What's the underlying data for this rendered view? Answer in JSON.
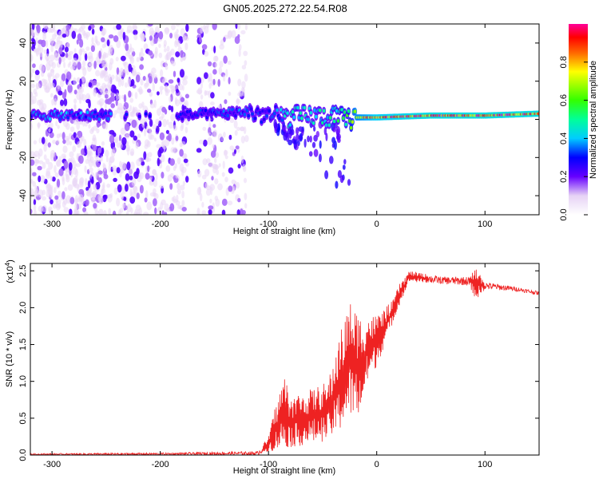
{
  "title": "GN05.2025.272.22.54.R08",
  "colors": {
    "snr_line": "#ee2222",
    "axes": "#000000"
  },
  "chart_data": [
    {
      "type": "heatmap",
      "name": "spectrogram",
      "xlabel": "Height of straight line (km)",
      "ylabel": "Frequency (Hz)",
      "xlim": [
        -320,
        150
      ],
      "ylim": [
        -50,
        50
      ],
      "x_ticks": [
        -300,
        -200,
        -100,
        0,
        100
      ],
      "x_tick_labels": [
        "-300",
        "-200",
        "-100",
        "0",
        "100"
      ],
      "y_ticks": [
        -40,
        -20,
        0,
        20,
        40
      ],
      "y_tick_labels": [
        "-40",
        "-20",
        "0",
        "20",
        "40"
      ],
      "colorbar": {
        "label": "Normalized spectral amplitude",
        "range": [
          0,
          1
        ],
        "ticks": [
          0,
          0.2,
          0.4,
          0.6,
          0.8
        ],
        "tick_labels": [
          "0.0",
          "0.2",
          "0.4",
          "0.6",
          "0.8"
        ]
      },
      "ridge": [
        {
          "x": -320,
          "f": 2,
          "amp": 0.4
        },
        {
          "x": -250,
          "f": 2,
          "amp": 0.35
        },
        {
          "x": -180,
          "f": 2,
          "amp": 0.3
        },
        {
          "x": -120,
          "f": 4,
          "amp": 0.35
        },
        {
          "x": -100,
          "f": 2,
          "amp": 0.3
        },
        {
          "x": -80,
          "f": 1,
          "amp": 0.5
        },
        {
          "x": -60,
          "f": 2,
          "amp": 0.45
        },
        {
          "x": -40,
          "f": 1,
          "amp": 0.5
        },
        {
          "x": -25,
          "f": 0,
          "amp": 0.6
        },
        {
          "x": -20,
          "f": 1,
          "amp": 0.8
        },
        {
          "x": 0,
          "f": 1,
          "amp": 0.9
        },
        {
          "x": 50,
          "f": 2,
          "amp": 0.95
        },
        {
          "x": 100,
          "f": 2,
          "amp": 0.95
        },
        {
          "x": 150,
          "f": 3,
          "amp": 0.95
        }
      ],
      "noise_regions": [
        {
          "x_from": -320,
          "x_to": -250,
          "density": 1.0
        },
        {
          "x_from": -250,
          "x_to": -175,
          "density": 0.8
        },
        {
          "x_from": -165,
          "x_to": -120,
          "density": 0.5
        }
      ]
    },
    {
      "type": "line",
      "name": "snr",
      "xlabel": "Height of straight line (km)",
      "ylabel": "SNR (10 * v/v)",
      "multiplier_label": "(x10",
      "multiplier_exponent": "4",
      "multiplier_close": ")",
      "xlim": [
        -320,
        150
      ],
      "ylim": [
        0,
        2.6
      ],
      "x_ticks": [
        -300,
        -200,
        -100,
        0,
        100
      ],
      "x_tick_labels": [
        "-300",
        "-200",
        "-100",
        "0",
        "100"
      ],
      "y_ticks": [
        0,
        0.5,
        1.0,
        1.5,
        2.0,
        2.5
      ],
      "y_tick_labels": [
        "0.0",
        "0.5",
        "1.0",
        "1.5",
        "2.0",
        "2.5"
      ],
      "envelope": [
        {
          "x": -320,
          "lo": 0.0,
          "hi": 0.02
        },
        {
          "x": -200,
          "lo": 0.0,
          "hi": 0.03
        },
        {
          "x": -110,
          "lo": 0.0,
          "hi": 0.05
        },
        {
          "x": -100,
          "lo": 0.05,
          "hi": 0.25
        },
        {
          "x": -95,
          "lo": 0.05,
          "hi": 0.6
        },
        {
          "x": -85,
          "lo": 0.1,
          "hi": 1.1
        },
        {
          "x": -80,
          "lo": 0.1,
          "hi": 0.8
        },
        {
          "x": -60,
          "lo": 0.15,
          "hi": 0.9
        },
        {
          "x": -45,
          "lo": 0.2,
          "hi": 1.0
        },
        {
          "x": -35,
          "lo": 0.3,
          "hi": 1.6
        },
        {
          "x": -25,
          "lo": 0.5,
          "hi": 2.1
        },
        {
          "x": -15,
          "lo": 0.5,
          "hi": 1.9
        },
        {
          "x": -8,
          "lo": 1.0,
          "hi": 1.9
        },
        {
          "x": 0,
          "lo": 1.2,
          "hi": 1.9
        },
        {
          "x": 15,
          "lo": 1.8,
          "hi": 2.1
        },
        {
          "x": 20,
          "lo": 2.0,
          "hi": 2.3
        },
        {
          "x": 30,
          "lo": 2.35,
          "hi": 2.5
        },
        {
          "x": 60,
          "lo": 2.32,
          "hi": 2.42
        },
        {
          "x": 85,
          "lo": 2.3,
          "hi": 2.42
        },
        {
          "x": 92,
          "lo": 2.1,
          "hi": 2.55
        },
        {
          "x": 100,
          "lo": 2.25,
          "hi": 2.35
        },
        {
          "x": 130,
          "lo": 2.22,
          "hi": 2.28
        },
        {
          "x": 150,
          "lo": 2.17,
          "hi": 2.22
        }
      ]
    }
  ]
}
